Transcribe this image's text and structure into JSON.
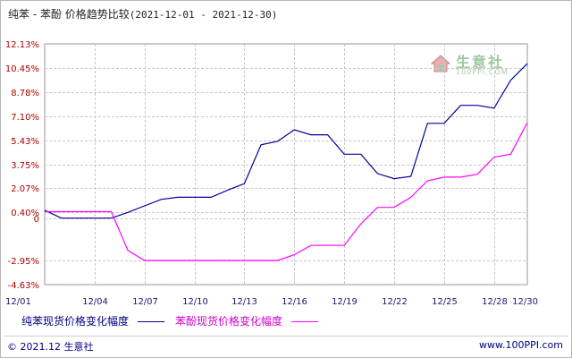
{
  "title": {
    "main": "纯苯 - 苯酚 价格趋势比较",
    "range": "(2021-12-01 - 2021-12-30)"
  },
  "watermark": {
    "text": "生意社",
    "sub": "100PPI.COM"
  },
  "footer": {
    "left": "© 2021.12 生意社",
    "right": "www.100PPI.com"
  },
  "colors": {
    "series1": "#000099",
    "series2": "#ff00ff",
    "grid": "#c8c8c8",
    "axis_label": "#b00000"
  },
  "chart_data": {
    "type": "line",
    "title": "纯苯 - 苯酚 价格趋势比较",
    "subtitle": "(2021-12-01 - 2021-12-30)",
    "xlabel": "",
    "ylabel": "",
    "x_ticks": [
      "12/01",
      "12/04",
      "12/07",
      "12/10",
      "12/13",
      "12/16",
      "12/19",
      "12/22",
      "12/25",
      "12/28",
      "12/30"
    ],
    "y_ticks": [
      "12.13%",
      "10.45%",
      "8.78%",
      "7.10%",
      "5.43%",
      "3.75%",
      "2.07%",
      "0.40%",
      "0",
      "-2.95%",
      "-4.63%"
    ],
    "ylim": [
      -4.63,
      12.13
    ],
    "grid": true,
    "legend": "bottom",
    "series": [
      {
        "name": "纯苯现货价格变化幅度",
        "x": [
          "12/01",
          "12/02",
          "12/03",
          "12/04",
          "12/05",
          "12/06",
          "12/07",
          "12/08",
          "12/09",
          "12/10",
          "12/11",
          "12/12",
          "12/13",
          "12/14",
          "12/15",
          "12/16",
          "12/17",
          "12/18",
          "12/19",
          "12/20",
          "12/21",
          "12/22",
          "12/23",
          "12/24",
          "12/25",
          "12/26",
          "12/27",
          "12/28",
          "12/29",
          "12/30"
        ],
        "values": [
          0.55,
          0.0,
          0.0,
          0.0,
          0.0,
          0.4,
          0.85,
          1.3,
          1.45,
          1.45,
          1.45,
          1.95,
          2.4,
          5.1,
          5.35,
          6.15,
          5.8,
          5.8,
          4.45,
          4.45,
          3.1,
          2.75,
          2.9,
          6.6,
          6.6,
          7.85,
          7.85,
          7.65,
          9.6,
          10.75
        ]
      },
      {
        "name": "苯酚现货价格变化幅度",
        "x": [
          "12/01",
          "12/02",
          "12/03",
          "12/04",
          "12/05",
          "12/06",
          "12/07",
          "12/08",
          "12/09",
          "12/10",
          "12/11",
          "12/12",
          "12/13",
          "12/14",
          "12/15",
          "12/16",
          "12/17",
          "12/18",
          "12/19",
          "12/20",
          "12/21",
          "12/22",
          "12/23",
          "12/24",
          "12/25",
          "12/26",
          "12/27",
          "12/28",
          "12/29",
          "12/30"
        ],
        "values": [
          0.45,
          0.45,
          0.45,
          0.45,
          0.45,
          -2.25,
          -2.95,
          -2.95,
          -2.95,
          -2.95,
          -2.95,
          -2.95,
          -2.95,
          -2.95,
          -2.95,
          -2.55,
          -1.9,
          -1.9,
          -1.9,
          -0.4,
          0.75,
          0.75,
          1.45,
          2.6,
          2.85,
          2.85,
          3.05,
          4.25,
          4.45,
          6.65
        ]
      }
    ]
  }
}
